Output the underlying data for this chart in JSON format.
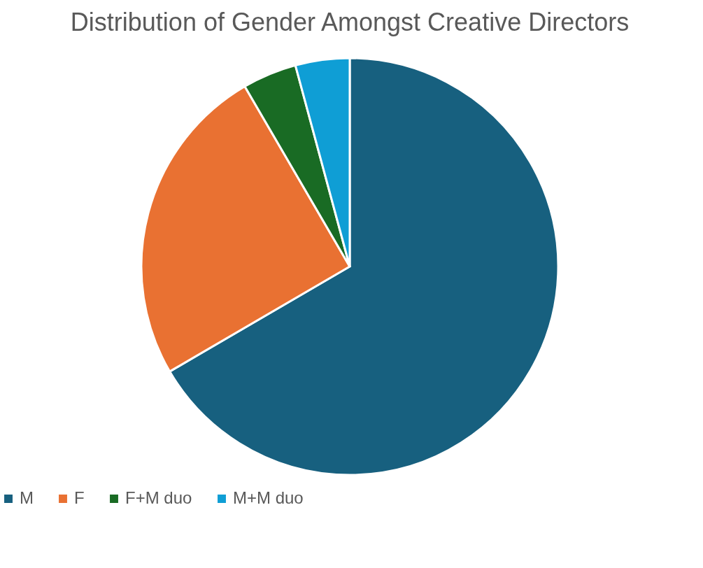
{
  "chart_data": {
    "type": "pie",
    "title": "Distribution of Gender Amongst Creative Directors",
    "categories": [
      "M",
      "F",
      "F+M duo",
      "M+M duo"
    ],
    "values": [
      66.6,
      25,
      4.2,
      4.2
    ],
    "colors": [
      "#17607f",
      "#e97132",
      "#196b24",
      "#0f9ed5"
    ],
    "legend": "bottom"
  }
}
